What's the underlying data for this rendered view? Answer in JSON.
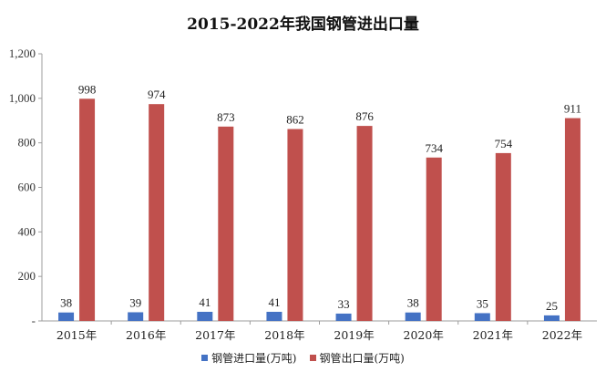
{
  "chart_data": {
    "type": "bar",
    "title": "2015-2022年我国钢管进出口量",
    "categories": [
      "2015年",
      "2016年",
      "2017年",
      "2018年",
      "2019年",
      "2020年",
      "2021年",
      "2022年"
    ],
    "series": [
      {
        "name": "钢管进口量(万吨)",
        "color": "#4472C4",
        "values": [
          38,
          39,
          41,
          41,
          33,
          38,
          35,
          25
        ]
      },
      {
        "name": "钢管出口量(万吨)",
        "color": "#C0504D",
        "values": [
          998,
          974,
          873,
          862,
          876,
          734,
          754,
          911
        ]
      }
    ],
    "ylim": [
      0,
      1200
    ],
    "yticks": [
      "-",
      "200",
      "400",
      "600",
      "800",
      "1,000",
      "1,200"
    ],
    "xlabel": "",
    "ylabel": "",
    "grid": false,
    "legend_position": "bottom"
  }
}
